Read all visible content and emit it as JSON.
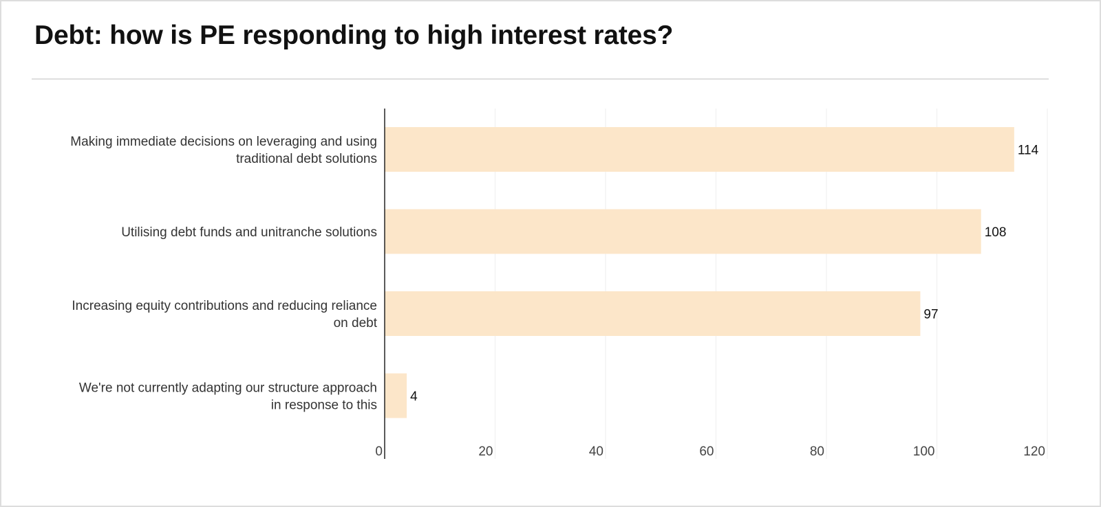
{
  "chart_data": {
    "type": "bar",
    "orientation": "horizontal",
    "title": "Debt: how is PE responding to high interest rates?",
    "categories": [
      [
        "Making immediate decisions on leveraging and using",
        "traditional debt solutions"
      ],
      [
        "Utilising debt funds and unitranche solutions"
      ],
      [
        "Increasing equity contributions and reducing reliance",
        "on debt"
      ],
      [
        "We're not currently adapting our structure approach",
        "in response to this"
      ]
    ],
    "values": [
      114,
      108,
      97,
      4
    ],
    "value_labels": [
      "114",
      "108",
      "97",
      "4"
    ],
    "xlim": [
      0,
      120
    ],
    "ticks": [
      0,
      20,
      40,
      60,
      80,
      100,
      120
    ],
    "tick_labels": [
      "0",
      "20",
      "40",
      "60",
      "80",
      "100",
      "120"
    ],
    "grid": true,
    "bar_color": "#fce6c9",
    "grid_color": "#eeeeee",
    "axis_color": "#222222"
  }
}
